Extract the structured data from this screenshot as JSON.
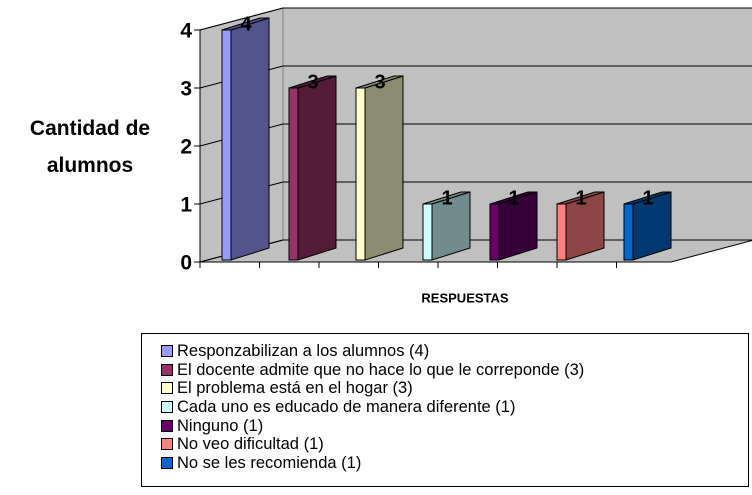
{
  "chart_data": {
    "type": "bar3d",
    "y_label": "Cantidad de alumnos",
    "x_label": "RESPUESTAS",
    "ylim": [
      0,
      4
    ],
    "yticks": [
      0,
      1,
      2,
      3,
      4
    ],
    "grid": true,
    "legend": "bottom",
    "series": [
      {
        "name": "Responzabilizan a los alumnos (4)",
        "color": "#9999FF",
        "values": [
          4
        ]
      },
      {
        "name": "El docente admite que no hace lo que le correponde (3)",
        "color": "#993366",
        "values": [
          3
        ]
      },
      {
        "name": "El problema está en el hogar (3)",
        "color": "#FFFFCC",
        "values": [
          3
        ]
      },
      {
        "name": "Cada uno es educado de manera diferente (1)",
        "color": "#CCFFFF",
        "values": [
          1
        ]
      },
      {
        "name": "Ninguno (1)",
        "color": "#660066",
        "values": [
          1
        ]
      },
      {
        "name": "No veo dificultad (1)",
        "color": "#FF8080",
        "values": [
          1
        ]
      },
      {
        "name": "No se les recomienda (1)",
        "color": "#0066CC",
        "values": [
          1
        ]
      }
    ]
  }
}
